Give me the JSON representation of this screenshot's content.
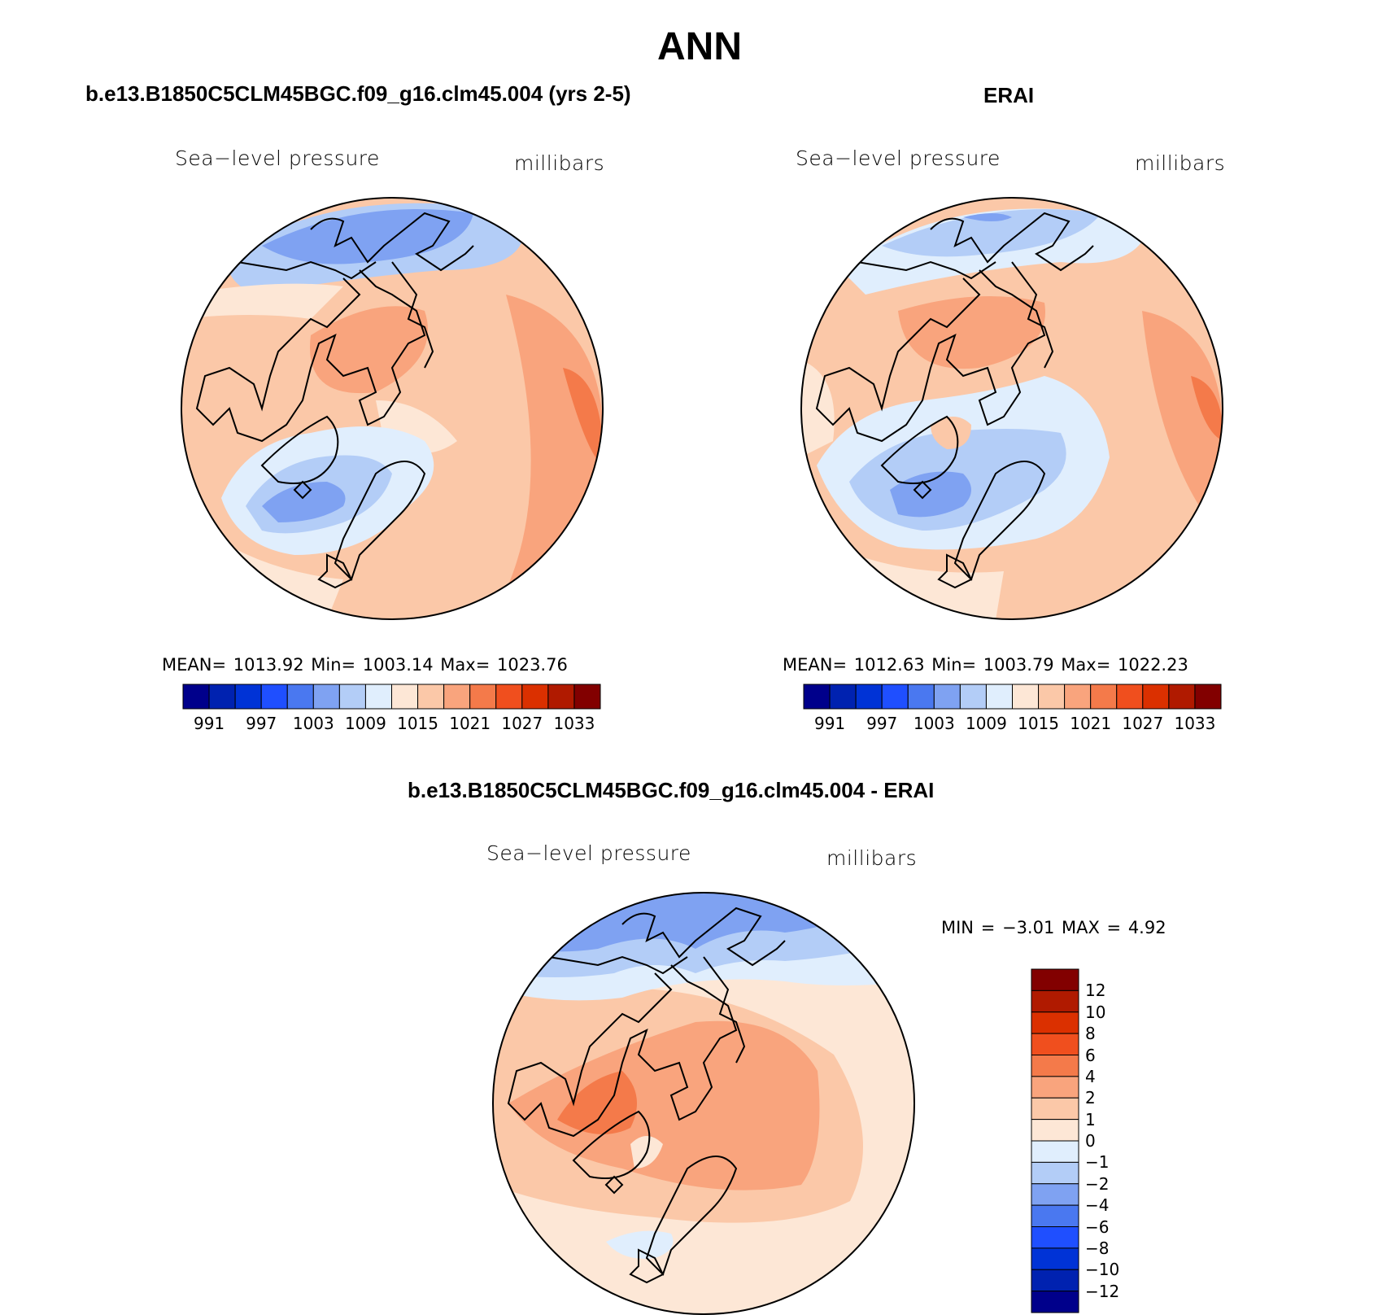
{
  "figure": {
    "title": "ANN"
  },
  "panels": [
    {
      "id": "model",
      "title": "b.e13.B1850C5CLM45BGC.f09_g16.clm45.004 (yrs 2-5)",
      "variable": "Sea−level pressure",
      "units": "millibars",
      "stats": "MEAN=  1013.92   Min=  1003.14   Max=  1023.76",
      "colorbar_ticks": [
        "991",
        "997",
        "1003",
        "1009",
        "1015",
        "1021",
        "1027",
        "1033"
      ]
    },
    {
      "id": "obs",
      "title": "ERAI",
      "variable": "Sea−level pressure",
      "units": "millibars",
      "stats": "MEAN=  1012.63   Min=  1003.79   Max=  1022.23",
      "colorbar_ticks": [
        "991",
        "997",
        "1003",
        "1009",
        "1015",
        "1021",
        "1027",
        "1033"
      ]
    },
    {
      "id": "diff",
      "title": "b.e13.B1850C5CLM45BGC.f09_g16.clm45.004 - ERAI",
      "variable": "Sea−level pressure",
      "units": "millibars",
      "stats": "MIN =    −3.01  MAX =     4.92",
      "colorbar_ticks": [
        "12",
        "10",
        "8",
        "6",
        "4",
        "2",
        "1",
        "0",
        "−1",
        "−2",
        "−4",
        "−6",
        "−8",
        "−10",
        "−12"
      ]
    }
  ],
  "colors": {
    "abs_scale": [
      "#00008b",
      "#0022b0",
      "#0033d6",
      "#1f4fff",
      "#4a78f0",
      "#7fa2f2",
      "#b3cdf7",
      "#e0eefd",
      "#fde7d6",
      "#fbc8a8",
      "#f9a47d",
      "#f47a4a",
      "#f04f1e",
      "#db3000",
      "#b01a00",
      "#820000"
    ],
    "diff_scale": [
      "#820000",
      "#b01a00",
      "#db3000",
      "#f04f1e",
      "#f47a4a",
      "#f9a47d",
      "#fbc8a8",
      "#fde7d6",
      "#e0eefd",
      "#b3cdf7",
      "#7fa2f2",
      "#4a78f0",
      "#1f4fff",
      "#0033d6",
      "#0022b0",
      "#00008b"
    ]
  }
}
